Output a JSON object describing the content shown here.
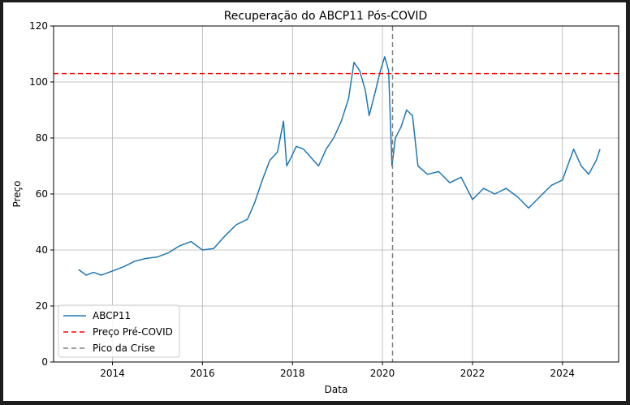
{
  "chart_data": {
    "type": "line",
    "title": "Recuperação do ABCP11 Pós-COVID",
    "xlabel": "Data",
    "ylabel": "Preço",
    "xlim": [
      "2012-09-10",
      "2025-04-01"
    ],
    "ylim": [
      0,
      120
    ],
    "x_ticks": [
      "2014",
      "2016",
      "2018",
      "2020",
      "2022",
      "2024"
    ],
    "y_ticks": [
      0,
      20,
      40,
      60,
      80,
      100,
      120
    ],
    "grid": true,
    "legend_position": "lower-left",
    "series": [
      {
        "name": "ABCP11",
        "color": "#1f77b4",
        "style": "solid",
        "points": [
          [
            "2013-04-01",
            33
          ],
          [
            "2013-06-01",
            31
          ],
          [
            "2013-08-01",
            32
          ],
          [
            "2013-10-01",
            31
          ],
          [
            "2014-01-01",
            32.5
          ],
          [
            "2014-04-01",
            34
          ],
          [
            "2014-07-01",
            36
          ],
          [
            "2014-10-01",
            37
          ],
          [
            "2015-01-01",
            37.5
          ],
          [
            "2015-04-01",
            39
          ],
          [
            "2015-07-01",
            41.5
          ],
          [
            "2015-10-01",
            43
          ],
          [
            "2016-01-01",
            40
          ],
          [
            "2016-04-01",
            40.5
          ],
          [
            "2016-07-01",
            45
          ],
          [
            "2016-10-01",
            49
          ],
          [
            "2017-01-01",
            51
          ],
          [
            "2017-03-01",
            57
          ],
          [
            "2017-05-01",
            65
          ],
          [
            "2017-07-01",
            72
          ],
          [
            "2017-09-01",
            75
          ],
          [
            "2017-10-20",
            86
          ],
          [
            "2017-11-15",
            70
          ],
          [
            "2017-12-20",
            73
          ],
          [
            "2018-02-01",
            77
          ],
          [
            "2018-04-01",
            76
          ],
          [
            "2018-06-01",
            73
          ],
          [
            "2018-08-01",
            70
          ],
          [
            "2018-10-01",
            76
          ],
          [
            "2018-12-01",
            80
          ],
          [
            "2019-02-01",
            86
          ],
          [
            "2019-04-01",
            94
          ],
          [
            "2019-05-15",
            107
          ],
          [
            "2019-07-01",
            104
          ],
          [
            "2019-08-15",
            97
          ],
          [
            "2019-09-15",
            88
          ],
          [
            "2019-11-01",
            96
          ],
          [
            "2019-12-15",
            104
          ],
          [
            "2020-01-20",
            109
          ],
          [
            "2020-02-20",
            104
          ],
          [
            "2020-03-18",
            70
          ],
          [
            "2020-04-15",
            80
          ],
          [
            "2020-06-01",
            84
          ],
          [
            "2020-07-15",
            90
          ],
          [
            "2020-09-01",
            88
          ],
          [
            "2020-10-15",
            70
          ],
          [
            "2021-01-01",
            67
          ],
          [
            "2021-04-01",
            68
          ],
          [
            "2021-07-01",
            64
          ],
          [
            "2021-10-01",
            66
          ],
          [
            "2022-01-01",
            58
          ],
          [
            "2022-04-01",
            62
          ],
          [
            "2022-07-01",
            60
          ],
          [
            "2022-10-01",
            62
          ],
          [
            "2023-01-01",
            59
          ],
          [
            "2023-04-01",
            55
          ],
          [
            "2023-07-01",
            59
          ],
          [
            "2023-10-01",
            63
          ],
          [
            "2024-01-01",
            65
          ],
          [
            "2024-04-01",
            76
          ],
          [
            "2024-06-01",
            70
          ],
          [
            "2024-08-01",
            67
          ],
          [
            "2024-10-01",
            72
          ],
          [
            "2024-11-01",
            76
          ]
        ]
      },
      {
        "name": "Preço Pré-COVID",
        "color": "#ff0000",
        "style": "dashed",
        "hline": 103
      },
      {
        "name": "Pico da Crise",
        "color": "#808080",
        "style": "dashed",
        "vline": "2020-03-23"
      }
    ]
  }
}
